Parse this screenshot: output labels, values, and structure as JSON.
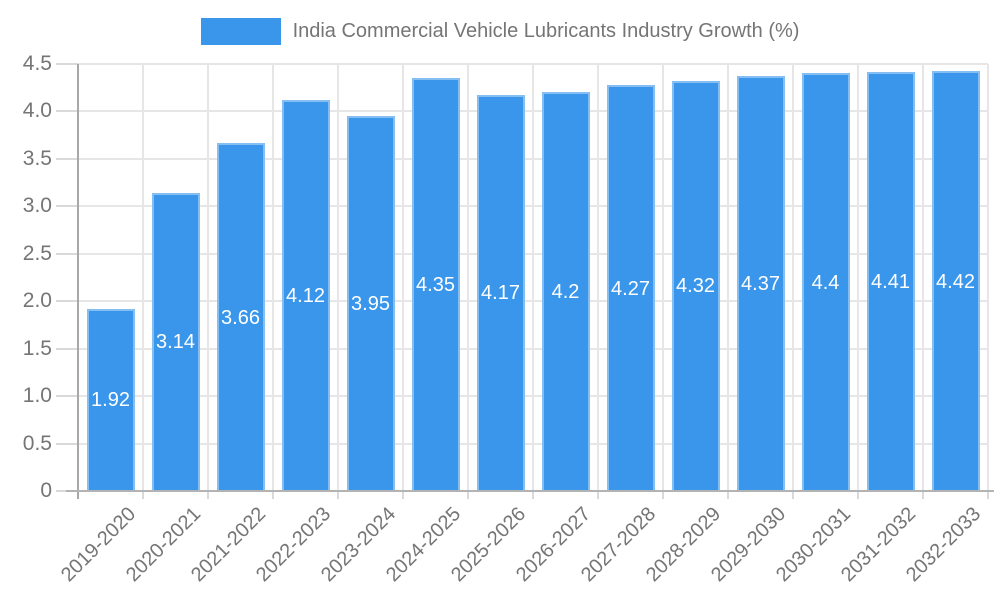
{
  "legend": {
    "label": "India Commercial Vehicle Lubricants Industry Growth (%)"
  },
  "chart_data": {
    "type": "bar",
    "title": "India Commercial Vehicle Lubricants Industry Growth (%)",
    "categories": [
      "2019-2020",
      "2020-2021",
      "2021-2022",
      "2022-2023",
      "2023-2024",
      "2024-2025",
      "2025-2026",
      "2026-2027",
      "2027-2028",
      "2028-2029",
      "2029-2030",
      "2030-2031",
      "2031-2032",
      "2032-2033"
    ],
    "values": [
      1.92,
      3.14,
      3.66,
      4.12,
      3.95,
      4.35,
      4.17,
      4.2,
      4.27,
      4.32,
      4.37,
      4.4,
      4.41,
      4.42
    ],
    "value_labels": [
      "1.92",
      "3.14",
      "3.66",
      "4.12",
      "3.95",
      "4.35",
      "4.17",
      "4.2",
      "4.27",
      "4.32",
      "4.37",
      "4.4",
      "4.41",
      "4.42"
    ],
    "xlabel": "",
    "ylabel": "",
    "ylim": [
      0,
      4.5
    ],
    "ytick_step": 0.5,
    "ytick_labels": [
      "0",
      "0.5",
      "1.0",
      "1.5",
      "2.0",
      "2.5",
      "3.0",
      "3.5",
      "4.0",
      "4.5"
    ],
    "grid": true,
    "legend_position": "top",
    "value_labels_position": "center-inside-bar",
    "xtick_rotation_deg": -45,
    "colors": {
      "bar": "#3996EB",
      "label_text": "#757575",
      "value_text": "#FFFFFF",
      "grid": "#E6E6E6",
      "axis_y": "#A8A8A8",
      "axis_x": "#B3B3B3",
      "tick": "#D9D9D9",
      "background": "#FFFFFF"
    }
  }
}
